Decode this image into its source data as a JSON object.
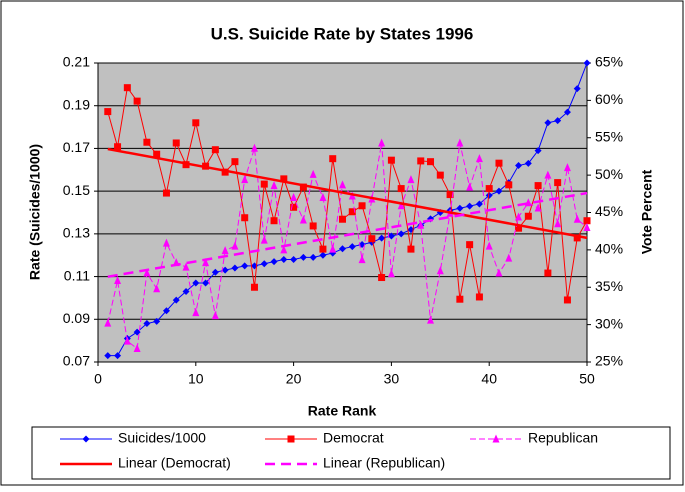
{
  "chart_data": {
    "type": "line",
    "title": "U.S. Suicide Rate by States 1996",
    "xlabel": "Rate Rank",
    "ylabel": "Rate (Suicides/1000)",
    "y2label": "Vote Percent",
    "x": [
      1,
      2,
      3,
      4,
      5,
      6,
      7,
      8,
      9,
      10,
      11,
      12,
      13,
      14,
      15,
      16,
      17,
      18,
      19,
      20,
      21,
      22,
      23,
      24,
      25,
      26,
      27,
      28,
      29,
      30,
      31,
      32,
      33,
      34,
      35,
      36,
      37,
      38,
      39,
      40,
      41,
      42,
      43,
      44,
      45,
      46,
      47,
      48,
      49,
      50
    ],
    "xlim": [
      0,
      50
    ],
    "xticks": [
      0,
      10,
      20,
      30,
      40,
      50
    ],
    "ylim": [
      0.07,
      0.21
    ],
    "yticks": [
      0.07,
      0.09,
      0.11,
      0.13,
      0.15,
      0.17,
      0.19,
      0.21
    ],
    "y2lim": [
      25,
      65
    ],
    "y2ticks": [
      {
        "value": 25,
        "label": "25%"
      },
      {
        "value": 30,
        "label": "30%"
      },
      {
        "value": 35,
        "label": "35%"
      },
      {
        "value": 40,
        "label": "40%"
      },
      {
        "value": 45,
        "label": "45%"
      },
      {
        "value": 50,
        "label": "50%"
      },
      {
        "value": 55,
        "label": "55%"
      },
      {
        "value": 60,
        "label": "60%"
      },
      {
        "value": 65,
        "label": "65%"
      }
    ],
    "grid": true,
    "series": [
      {
        "name": "Suicides/1000",
        "color": "#0000ff",
        "marker": "diamond",
        "values": [
          0.073,
          0.073,
          0.081,
          0.084,
          0.088,
          0.089,
          0.094,
          0.099,
          0.103,
          0.107,
          0.107,
          0.112,
          0.113,
          0.114,
          0.115,
          0.115,
          0.116,
          0.117,
          0.118,
          0.118,
          0.119,
          0.119,
          0.12,
          0.121,
          0.123,
          0.124,
          0.125,
          0.126,
          0.128,
          0.129,
          0.13,
          0.132,
          0.134,
          0.137,
          0.14,
          0.141,
          0.142,
          0.143,
          0.144,
          0.148,
          0.15,
          0.154,
          0.162,
          0.163,
          0.169,
          0.182,
          0.183,
          0.187,
          0.198,
          0.21
        ]
      },
      {
        "name": "Democrat",
        "color": "#ff0000",
        "marker": "square",
        "axis": "y2",
        "values": [
          58.5,
          53.8,
          61.7,
          59.9,
          54.4,
          52.8,
          47.6,
          54.3,
          51.4,
          57,
          51.2,
          53.4,
          50.4,
          51.8,
          44.3,
          35,
          48.8,
          43.9,
          49.5,
          45.7,
          48.4,
          43.2,
          40.1,
          52.2,
          44.1,
          45.1,
          45.9,
          41.5,
          36.3,
          52,
          48.2,
          40.1,
          51.9,
          51.8,
          50,
          47.4,
          33.4,
          40.7,
          33.7,
          48.2,
          51.6,
          48.7,
          42.9,
          44.5,
          48.6,
          36.9,
          49,
          33.3,
          41.6,
          43.9
        ]
      },
      {
        "name": "Republican",
        "color": "#ff00ff",
        "marker": "triangle",
        "axis": "y2",
        "dash": true,
        "values": [
          30.2,
          35.9,
          27.8,
          26.8,
          36.9,
          34.8,
          40.9,
          38.3,
          37.7,
          31.6,
          38.3,
          31.2,
          39.9,
          40.5,
          49.4,
          53.6,
          41.3,
          48.6,
          40,
          47,
          44,
          50.1,
          47,
          40.1,
          48.7,
          47.2,
          38.7,
          46.8,
          54.3,
          36.8,
          45.9,
          49.4,
          43.3,
          30.6,
          37.2,
          44.9,
          54.3,
          48.4,
          52.2,
          40.5,
          36.9,
          38.9,
          44.4,
          46.3,
          45.6,
          50,
          43.5,
          51,
          44.1,
          43
        ]
      },
      {
        "name": "Linear (Democrat)",
        "color": "#ff0000",
        "axis": "y2",
        "x": [
          1,
          50
        ],
        "values": [
          53.5,
          41.6
        ]
      },
      {
        "name": "Linear (Republican)",
        "color": "#ff00ff",
        "axis": "y2",
        "dash": true,
        "x": [
          1,
          50
        ],
        "values": [
          36.4,
          47.6
        ]
      }
    ]
  }
}
